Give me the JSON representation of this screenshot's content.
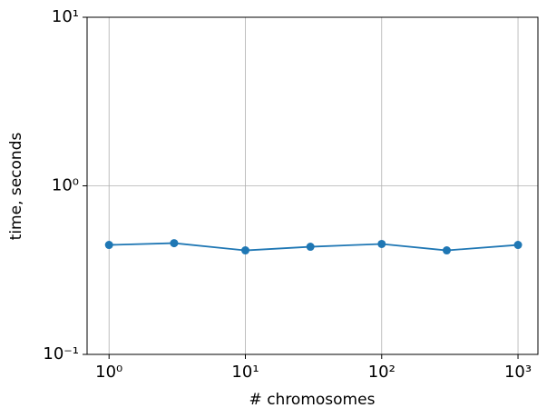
{
  "chart_data": {
    "type": "line",
    "xlabel": "# chromosomes",
    "ylabel": "time, seconds",
    "xscale": "log",
    "yscale": "log",
    "grid": true,
    "x": [
      1,
      3,
      10,
      30,
      100,
      300,
      1000
    ],
    "series": [
      {
        "name": "time",
        "color": "#1f77b4",
        "values": [
          0.446,
          0.457,
          0.414,
          0.435,
          0.452,
          0.414,
          0.446
        ]
      }
    ],
    "xlim": [
      0.69,
      1400
    ],
    "ylim": [
      0.1,
      10
    ],
    "xticks": [
      {
        "value": 1,
        "label": "10⁰"
      },
      {
        "value": 10,
        "label": "10¹"
      },
      {
        "value": 100,
        "label": "10²"
      },
      {
        "value": 1000,
        "label": "10³"
      }
    ],
    "yticks": [
      {
        "value": 0.1,
        "label": "10⁻¹"
      },
      {
        "value": 1,
        "label": "10⁰"
      },
      {
        "value": 10,
        "label": "10¹"
      }
    ]
  }
}
